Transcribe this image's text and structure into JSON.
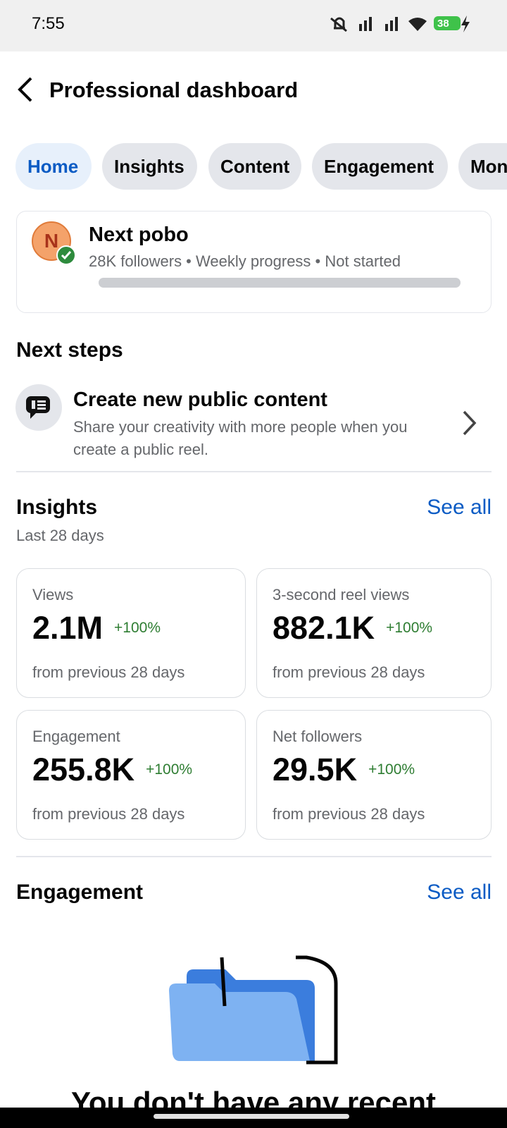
{
  "status_bar": {
    "time": "7:55",
    "battery": "38"
  },
  "header": {
    "title": "Professional dashboard"
  },
  "tabs": [
    "Home",
    "Insights",
    "Content",
    "Engagement",
    "Mon"
  ],
  "profile": {
    "initial": "N",
    "name": "Next pobo",
    "meta": "28K followers • Weekly progress • Not started"
  },
  "next_steps": {
    "heading": "Next steps",
    "item": {
      "title": "Create new public content",
      "description": "Share your creativity with more people when you create a public reel."
    }
  },
  "insights": {
    "heading": "Insights",
    "see_all": "See all",
    "period": "Last 28 days",
    "cards": [
      {
        "label": "Views",
        "value": "2.1M",
        "change": "+100%",
        "note": "from previous 28 days"
      },
      {
        "label": "3-second reel views",
        "value": "882.1K",
        "change": "+100%",
        "note": "from previous 28 days"
      },
      {
        "label": "Engagement",
        "value": "255.8K",
        "change": "+100%",
        "note": "from previous 28 days"
      },
      {
        "label": "Net followers",
        "value": "29.5K",
        "change": "+100%",
        "note": "from previous 28 days"
      }
    ]
  },
  "engagement": {
    "heading": "Engagement",
    "see_all": "See all",
    "empty_message": "You don't have any recent"
  }
}
